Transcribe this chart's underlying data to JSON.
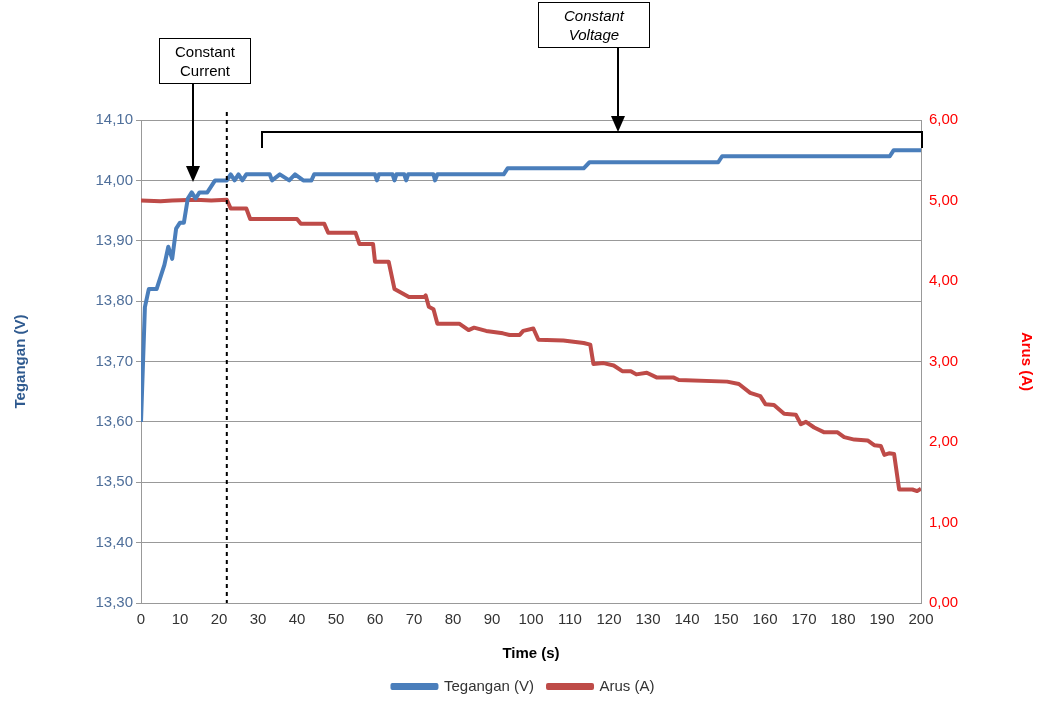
{
  "chart_data": {
    "type": "line",
    "xlabel": "Time (s)",
    "ylabel": "Tegangan (V)",
    "y2label": "Arus (A)",
    "xlim": [
      0,
      200
    ],
    "xticks": [
      0,
      10,
      20,
      30,
      40,
      50,
      60,
      70,
      80,
      90,
      100,
      110,
      120,
      130,
      140,
      150,
      160,
      170,
      180,
      190,
      200
    ],
    "ylim": [
      13.3,
      14.1
    ],
    "yticks": [
      {
        "value": 13.3,
        "label": "13,30"
      },
      {
        "value": 13.4,
        "label": "13,40"
      },
      {
        "value": 13.5,
        "label": "13,50"
      },
      {
        "value": 13.6,
        "label": "13,60"
      },
      {
        "value": 13.7,
        "label": "13,70"
      },
      {
        "value": 13.8,
        "label": "13,80"
      },
      {
        "value": 13.9,
        "label": "13,90"
      },
      {
        "value": 14.0,
        "label": "14,00"
      },
      {
        "value": 14.1,
        "label": "14,10"
      }
    ],
    "y2lim": [
      0,
      6
    ],
    "y2ticks": [
      {
        "value": 0,
        "label": "0,00"
      },
      {
        "value": 1,
        "label": "1,00"
      },
      {
        "value": 2,
        "label": "2,00"
      },
      {
        "value": 3,
        "label": "3,00"
      },
      {
        "value": 4,
        "label": "4,00"
      },
      {
        "value": 5,
        "label": "5,00"
      },
      {
        "value": 6,
        "label": "6,00"
      }
    ],
    "grid": "y",
    "legend": "bottom",
    "marker": "none",
    "line_style": "solid",
    "series": [
      {
        "name": "Tegangan (V)",
        "color": "#4a7ebb",
        "x": [
          0,
          1,
          2,
          4,
          6,
          7,
          8,
          9,
          10,
          11,
          12,
          13,
          14,
          15,
          17,
          18,
          19,
          22,
          23,
          24,
          25,
          26,
          27,
          33,
          33.6,
          35.6,
          38,
          39.5,
          41.6,
          42.6,
          43.7,
          44.4,
          60,
          60.5,
          61,
          64.5,
          65,
          65.5,
          67.5,
          68,
          68.5,
          75,
          75.4,
          76,
          93,
          94,
          113.5,
          115,
          148,
          149,
          192,
          193,
          200
        ],
        "values": [
          13.6,
          13.79,
          13.82,
          13.82,
          13.86,
          13.89,
          13.87,
          13.92,
          13.93,
          13.93,
          13.97,
          13.98,
          13.97,
          13.98,
          13.98,
          13.99,
          14.0,
          14.0,
          14.01,
          14.0,
          14.01,
          14.0,
          14.01,
          14.01,
          14.0,
          14.01,
          14.0,
          14.01,
          14.0,
          14.0,
          14.0,
          14.01,
          14.01,
          14.0,
          14.01,
          14.01,
          14.0,
          14.01,
          14.01,
          14.0,
          14.01,
          14.01,
          14.0,
          14.01,
          14.01,
          14.02,
          14.02,
          14.03,
          14.03,
          14.04,
          14.04,
          14.05,
          14.05
        ]
      },
      {
        "name": "Arus (A)",
        "color": "#be4b48",
        "axis": "y2",
        "x": [
          0,
          5,
          8,
          14,
          18,
          22,
          23,
          27,
          28,
          40,
          41,
          47,
          48,
          55,
          56,
          59.5,
          60,
          63.5,
          65,
          68.7,
          72.6,
          73,
          73.8,
          75,
          76,
          81.6,
          84,
          85.4,
          88.5,
          92.8,
          94.5,
          97.1,
          98,
          100.6,
          101.9,
          108.3,
          113.5,
          115.2,
          116,
          118.6,
          121.2,
          123.4,
          125.6,
          127,
          129.7,
          132.3,
          136.6,
          137.9,
          150.3,
          153.3,
          156.2,
          158.8,
          160.1,
          162.3,
          164.9,
          167.9,
          169.2,
          170.5,
          172.6,
          175.2,
          178.6,
          180.3,
          182.9,
          186.3,
          188,
          189.7,
          190.6,
          191.8,
          193.1,
          194.4,
          197.8,
          199,
          200
        ],
        "values": [
          5.0,
          4.99,
          5.0,
          5.01,
          5.0,
          5.01,
          4.9,
          4.9,
          4.77,
          4.77,
          4.71,
          4.71,
          4.6,
          4.6,
          4.46,
          4.46,
          4.24,
          4.24,
          3.9,
          3.8,
          3.8,
          3.82,
          3.68,
          3.65,
          3.47,
          3.47,
          3.39,
          3.42,
          3.38,
          3.35,
          3.33,
          3.33,
          3.38,
          3.41,
          3.27,
          3.26,
          3.23,
          3.21,
          2.97,
          2.98,
          2.95,
          2.88,
          2.88,
          2.84,
          2.86,
          2.8,
          2.8,
          2.77,
          2.75,
          2.72,
          2.61,
          2.57,
          2.47,
          2.46,
          2.35,
          2.34,
          2.22,
          2.25,
          2.18,
          2.12,
          2.12,
          2.06,
          2.03,
          2.02,
          1.96,
          1.95,
          1.84,
          1.86,
          1.85,
          1.41,
          1.41,
          1.39,
          1.42
        ]
      }
    ],
    "ref_lines": [
      {
        "axis": "x",
        "value": 22,
        "line_style": "dashed",
        "color": "#000000"
      }
    ],
    "annotations": [
      "Constant\nCurrent",
      "Constant\nVoltage"
    ]
  }
}
